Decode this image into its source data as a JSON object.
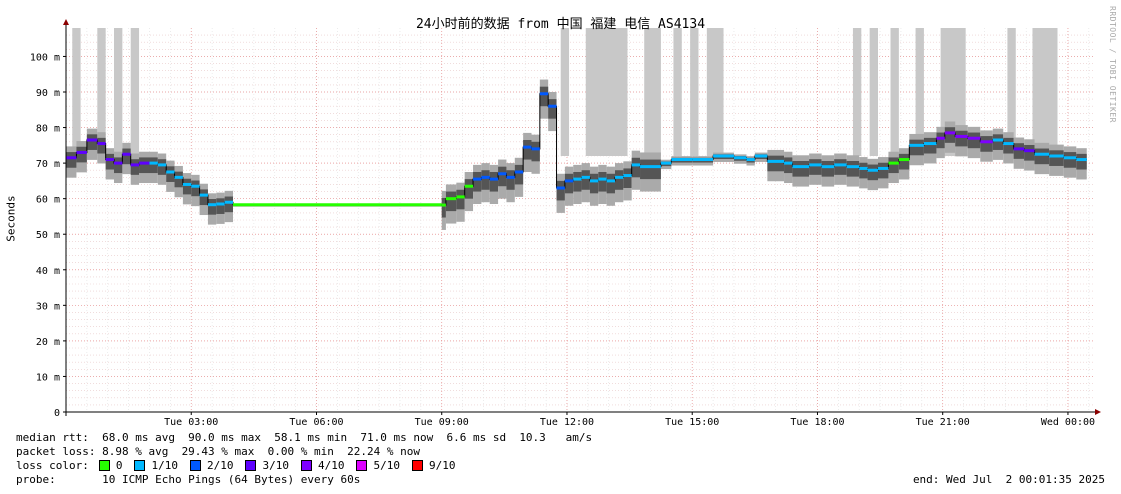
{
  "chart_data": {
    "type": "area",
    "title": "24小时前的数据 from 中国 福建 电信 AS4134",
    "ylabel": "Seconds",
    "ylim": [
      0,
      0.108
    ],
    "y_ticks": [
      {
        "v": 0,
        "label": "0"
      },
      {
        "v": 0.01,
        "label": "10 m"
      },
      {
        "v": 0.02,
        "label": "20 m"
      },
      {
        "v": 0.03,
        "label": "30 m"
      },
      {
        "v": 0.04,
        "label": "40 m"
      },
      {
        "v": 0.05,
        "label": "50 m"
      },
      {
        "v": 0.06,
        "label": "60 m"
      },
      {
        "v": 0.07,
        "label": "70 m"
      },
      {
        "v": 0.08,
        "label": "80 m"
      },
      {
        "v": 0.09,
        "label": "90 m"
      },
      {
        "v": 0.1,
        "label": "100 m"
      }
    ],
    "x_ticks": [
      {
        "h": 3,
        "label": "Tue 03:00"
      },
      {
        "h": 6,
        "label": "Tue 06:00"
      },
      {
        "h": 9,
        "label": "Tue 09:00"
      },
      {
        "h": 12,
        "label": "Tue 12:00"
      },
      {
        "h": 15,
        "label": "Tue 15:00"
      },
      {
        "h": 18,
        "label": "Tue 18:00"
      },
      {
        "h": 21,
        "label": "Tue 21:00"
      },
      {
        "h": 24,
        "label": "Wed 00:00"
      }
    ],
    "x_range_hours": [
      0,
      24.6
    ],
    "grid": true,
    "loss_columns_hours": [
      [
        0.15,
        0.35
      ],
      [
        0.75,
        0.95
      ],
      [
        1.15,
        1.35
      ],
      [
        1.55,
        1.75
      ],
      [
        11.85,
        12.05
      ],
      [
        12.45,
        13.45
      ],
      [
        13.85,
        14.25
      ],
      [
        14.55,
        14.75
      ],
      [
        14.95,
        15.15
      ],
      [
        15.35,
        15.75
      ],
      [
        18.85,
        19.05
      ],
      [
        19.25,
        19.45
      ],
      [
        19.75,
        19.95
      ],
      [
        20.35,
        20.55
      ],
      [
        20.95,
        21.55
      ],
      [
        22.55,
        22.75
      ],
      [
        23.15,
        23.75
      ]
    ],
    "median_series": [
      {
        "t": 0.0,
        "ms": 71.5
      },
      {
        "t": 0.25,
        "ms": 73.0
      },
      {
        "t": 0.5,
        "ms": 76.5
      },
      {
        "t": 0.75,
        "ms": 75.5
      },
      {
        "t": 0.95,
        "ms": 71.0
      },
      {
        "t": 1.15,
        "ms": 70.0
      },
      {
        "t": 1.35,
        "ms": 72.5
      },
      {
        "t": 1.55,
        "ms": 69.5
      },
      {
        "t": 1.75,
        "ms": 70.0
      },
      {
        "t": 2.0,
        "ms": 70.0
      },
      {
        "t": 2.2,
        "ms": 69.5
      },
      {
        "t": 2.4,
        "ms": 67.5
      },
      {
        "t": 2.6,
        "ms": 66.0
      },
      {
        "t": 2.8,
        "ms": 64.0
      },
      {
        "t": 3.0,
        "ms": 63.5
      },
      {
        "t": 3.2,
        "ms": 61.0
      },
      {
        "t": 3.4,
        "ms": 58.3
      },
      {
        "t": 3.6,
        "ms": 58.5
      },
      {
        "t": 3.8,
        "ms": 59.0
      },
      {
        "t": 4.0,
        "ms": 58.3
      },
      {
        "t": 9.0,
        "ms": 58.2
      },
      {
        "t": 9.1,
        "ms": 60.0
      },
      {
        "t": 9.35,
        "ms": 60.5
      },
      {
        "t": 9.55,
        "ms": 63.5
      },
      {
        "t": 9.75,
        "ms": 65.5
      },
      {
        "t": 9.95,
        "ms": 66.0
      },
      {
        "t": 10.15,
        "ms": 65.5
      },
      {
        "t": 10.35,
        "ms": 67.0
      },
      {
        "t": 10.55,
        "ms": 66.0
      },
      {
        "t": 10.75,
        "ms": 67.5
      },
      {
        "t": 10.95,
        "ms": 74.5
      },
      {
        "t": 11.15,
        "ms": 74.0
      },
      {
        "t": 11.35,
        "ms": 89.5
      },
      {
        "t": 11.55,
        "ms": 86.0
      },
      {
        "t": 11.75,
        "ms": 63.0
      },
      {
        "t": 11.95,
        "ms": 65.0
      },
      {
        "t": 12.15,
        "ms": 65.5
      },
      {
        "t": 12.35,
        "ms": 66.0
      },
      {
        "t": 12.55,
        "ms": 65.0
      },
      {
        "t": 12.75,
        "ms": 65.5
      },
      {
        "t": 12.95,
        "ms": 65.0
      },
      {
        "t": 13.15,
        "ms": 66.0
      },
      {
        "t": 13.35,
        "ms": 66.5
      },
      {
        "t": 13.55,
        "ms": 69.5
      },
      {
        "t": 13.75,
        "ms": 69.0
      },
      {
        "t": 14.25,
        "ms": 70.0
      },
      {
        "t": 14.5,
        "ms": 71.0
      },
      {
        "t": 15.0,
        "ms": 71.0
      },
      {
        "t": 15.5,
        "ms": 72.0
      },
      {
        "t": 16.0,
        "ms": 71.5
      },
      {
        "t": 16.3,
        "ms": 71.0
      },
      {
        "t": 16.5,
        "ms": 72.0
      },
      {
        "t": 16.8,
        "ms": 70.5
      },
      {
        "t": 17.2,
        "ms": 70.0
      },
      {
        "t": 17.4,
        "ms": 69.0
      },
      {
        "t": 17.8,
        "ms": 69.5
      },
      {
        "t": 18.1,
        "ms": 69.0
      },
      {
        "t": 18.4,
        "ms": 69.5
      },
      {
        "t": 18.7,
        "ms": 69.0
      },
      {
        "t": 19.0,
        "ms": 68.5
      },
      {
        "t": 19.2,
        "ms": 68.0
      },
      {
        "t": 19.45,
        "ms": 68.5
      },
      {
        "t": 19.7,
        "ms": 70.0
      },
      {
        "t": 19.95,
        "ms": 71.0
      },
      {
        "t": 20.2,
        "ms": 75.0
      },
      {
        "t": 20.55,
        "ms": 75.5
      },
      {
        "t": 20.85,
        "ms": 77.0
      },
      {
        "t": 21.05,
        "ms": 78.5
      },
      {
        "t": 21.3,
        "ms": 77.5
      },
      {
        "t": 21.6,
        "ms": 77.0
      },
      {
        "t": 21.9,
        "ms": 76.0
      },
      {
        "t": 22.2,
        "ms": 76.5
      },
      {
        "t": 22.45,
        "ms": 75.5
      },
      {
        "t": 22.7,
        "ms": 74.0
      },
      {
        "t": 22.95,
        "ms": 73.5
      },
      {
        "t": 23.2,
        "ms": 72.5
      },
      {
        "t": 23.55,
        "ms": 72.0
      },
      {
        "t": 23.9,
        "ms": 71.5
      },
      {
        "t": 24.2,
        "ms": 71.0
      },
      {
        "t": 24.45,
        "ms": 71.0
      }
    ]
  },
  "stats": {
    "rtt_line": "median rtt:  68.0 ms avg  90.0 ms max  58.1 ms min  71.0 ms now  6.6 ms sd  10.3   am/s",
    "loss_line": "packet loss: 8.98 % avg  29.43 % max  0.00 % min  22.24 % now",
    "loss_color_label": "loss color:",
    "probe_line": "probe:       10 ICMP Echo Pings (64 Bytes) every 60s",
    "end_line": "end: Wed Jul  2 00:01:35 2025"
  },
  "loss_legend": [
    {
      "label": "0",
      "color": "#26ff00"
    },
    {
      "label": "1/10",
      "color": "#00b8ff"
    },
    {
      "label": "2/10",
      "color": "#0059ff"
    },
    {
      "label": "3/10",
      "color": "#5e00ff"
    },
    {
      "label": "4/10",
      "color": "#7e00ff"
    },
    {
      "label": "5/10",
      "color": "#dd00ff"
    },
    {
      "label": "9/10",
      "color": "#ff0000"
    }
  ],
  "watermark": "RRDTOOL / TOBI OETIKER"
}
